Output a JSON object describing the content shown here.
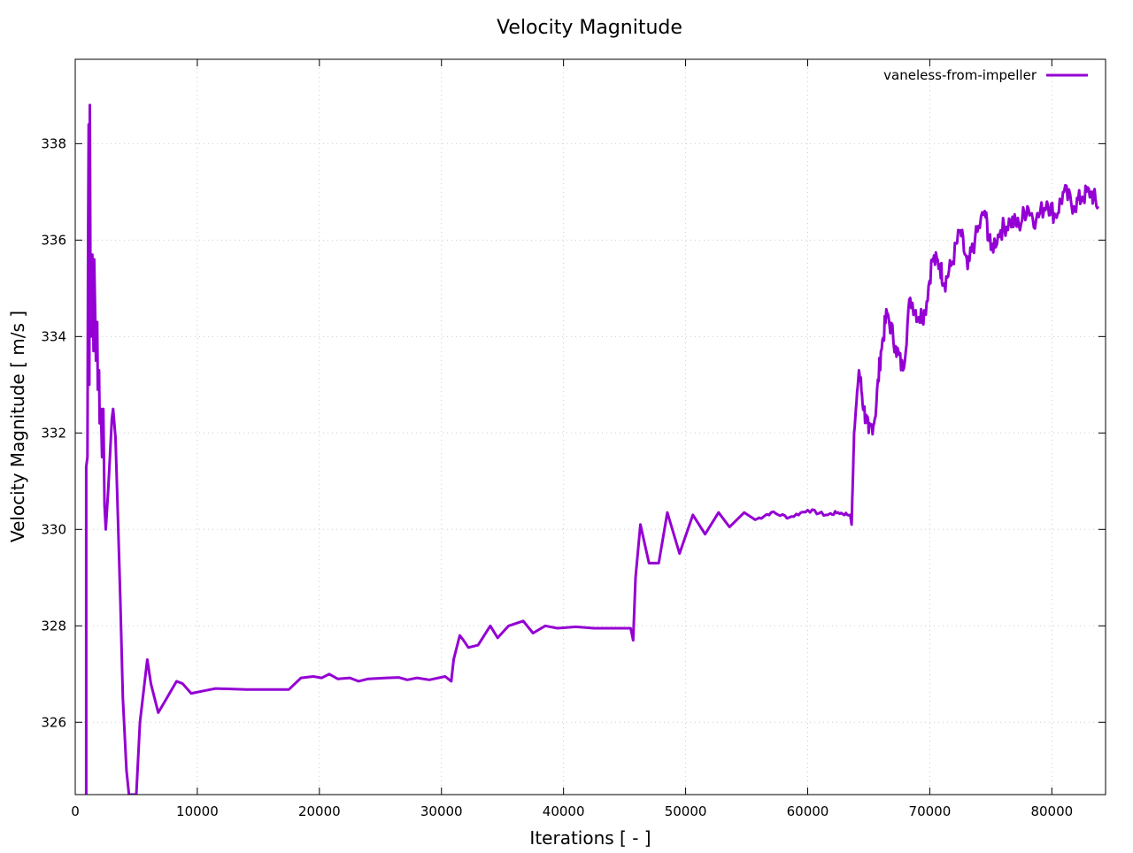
{
  "chart_data": {
    "type": "line",
    "title": "Velocity Magnitude",
    "xlabel": "Iterations [ - ]",
    "ylabel": "Velocity Magnitude [ m/s ]",
    "xlim": [
      0,
      84400
    ],
    "ylim": [
      324.5,
      339.75
    ],
    "xticks": [
      0,
      10000,
      20000,
      30000,
      40000,
      50000,
      60000,
      70000,
      80000
    ],
    "yticks": [
      326,
      328,
      330,
      332,
      334,
      336,
      338
    ],
    "grid": true,
    "legend_position": "top-right",
    "series": [
      {
        "name": "vaneless-from-impeller",
        "color": "#9400d3",
        "points": [
          [
            900,
            324.5
          ],
          [
            900,
            331.3
          ],
          [
            1000,
            331.5
          ],
          [
            1050,
            335.8
          ],
          [
            1100,
            338.4
          ],
          [
            1150,
            333
          ],
          [
            1200,
            338.8
          ],
          [
            1250,
            335
          ],
          [
            1350,
            334
          ],
          [
            1400,
            335.7
          ],
          [
            1500,
            333.7
          ],
          [
            1550,
            335.6
          ],
          [
            1650,
            334.2
          ],
          [
            1700,
            333.5
          ],
          [
            1800,
            334.3
          ],
          [
            1850,
            332.9
          ],
          [
            1950,
            333.3
          ],
          [
            2000,
            332.2
          ],
          [
            2100,
            332.5
          ],
          [
            2200,
            331.5
          ],
          [
            2300,
            332.5
          ],
          [
            2400,
            330.5
          ],
          [
            2500,
            330
          ],
          [
            2700,
            330.8
          ],
          [
            3000,
            332.3
          ],
          [
            3100,
            332.5
          ],
          [
            3300,
            331.9
          ],
          [
            3500,
            330.2
          ],
          [
            3700,
            328.5
          ],
          [
            3900,
            326.5
          ],
          [
            4200,
            325
          ],
          [
            4400,
            324.5
          ],
          [
            5000,
            324.5
          ],
          [
            5300,
            326
          ],
          [
            5900,
            327.3
          ],
          [
            6200,
            326.8
          ],
          [
            6800,
            326.2
          ],
          [
            7500,
            326.5
          ],
          [
            8300,
            326.85
          ],
          [
            8800,
            326.8
          ],
          [
            9500,
            326.6
          ],
          [
            10500,
            326.65
          ],
          [
            11500,
            326.7
          ],
          [
            14000,
            326.68
          ],
          [
            17500,
            326.68
          ],
          [
            18000,
            326.8
          ],
          [
            18500,
            326.92
          ],
          [
            19500,
            326.95
          ],
          [
            20200,
            326.92
          ],
          [
            20800,
            327.0
          ],
          [
            21500,
            326.9
          ],
          [
            22500,
            326.92
          ],
          [
            23200,
            326.85
          ],
          [
            24000,
            326.9
          ],
          [
            25500,
            326.92
          ],
          [
            26500,
            326.93
          ],
          [
            27200,
            326.88
          ],
          [
            28000,
            326.92
          ],
          [
            29000,
            326.88
          ],
          [
            30300,
            326.95
          ],
          [
            30800,
            326.85
          ],
          [
            31000,
            327.3
          ],
          [
            31500,
            327.8
          ],
          [
            31800,
            327.7
          ],
          [
            32200,
            327.55
          ],
          [
            33000,
            327.6
          ],
          [
            34000,
            328.0
          ],
          [
            34600,
            327.75
          ],
          [
            35500,
            328.0
          ],
          [
            36700,
            328.1
          ],
          [
            37500,
            327.85
          ],
          [
            38500,
            328.0
          ],
          [
            39500,
            327.95
          ],
          [
            41000,
            327.98
          ],
          [
            42500,
            327.95
          ],
          [
            44000,
            327.95
          ],
          [
            45500,
            327.95
          ],
          [
            45700,
            327.7
          ],
          [
            45900,
            329.0
          ],
          [
            46300,
            330.1
          ],
          [
            47000,
            329.3
          ],
          [
            47800,
            329.3
          ],
          [
            48500,
            330.35
          ],
          [
            49500,
            329.5
          ],
          [
            50600,
            330.3
          ],
          [
            51600,
            329.9
          ],
          [
            52700,
            330.35
          ],
          [
            53600,
            330.05
          ],
          [
            54800,
            330.35
          ],
          [
            55700,
            330.2
          ],
          [
            57000,
            330.35
          ],
          [
            58500,
            330.25
          ],
          [
            60000,
            330.4
          ],
          [
            61500,
            330.3
          ],
          [
            62500,
            330.35
          ],
          [
            63500,
            330.3
          ],
          [
            63600,
            330.1
          ],
          [
            63800,
            332
          ],
          [
            64200,
            333.3
          ],
          [
            64600,
            332.5
          ],
          [
            65000,
            332
          ],
          [
            65500,
            332.3
          ],
          [
            66000,
            333.7
          ],
          [
            66500,
            334.5
          ],
          [
            67200,
            333.8
          ],
          [
            67800,
            333.3
          ],
          [
            68400,
            334.8
          ],
          [
            69100,
            334.4
          ],
          [
            69600,
            334.5
          ],
          [
            70200,
            335.6
          ],
          [
            70800,
            335.5
          ],
          [
            71200,
            335.1
          ],
          [
            71800,
            335.5
          ],
          [
            72500,
            336.2
          ],
          [
            73100,
            335.4
          ],
          [
            73700,
            336.0
          ],
          [
            74500,
            336.6
          ],
          [
            75000,
            335.8
          ],
          [
            75800,
            336.2
          ],
          [
            76600,
            336.4
          ],
          [
            77300,
            336.3
          ],
          [
            78000,
            336.7
          ],
          [
            78700,
            336.4
          ],
          [
            79600,
            336.8
          ],
          [
            80300,
            336.5
          ],
          [
            81000,
            337.0
          ],
          [
            81800,
            336.7
          ],
          [
            82500,
            336.9
          ],
          [
            83200,
            337.0
          ],
          [
            83800,
            336.7
          ]
        ]
      }
    ]
  }
}
